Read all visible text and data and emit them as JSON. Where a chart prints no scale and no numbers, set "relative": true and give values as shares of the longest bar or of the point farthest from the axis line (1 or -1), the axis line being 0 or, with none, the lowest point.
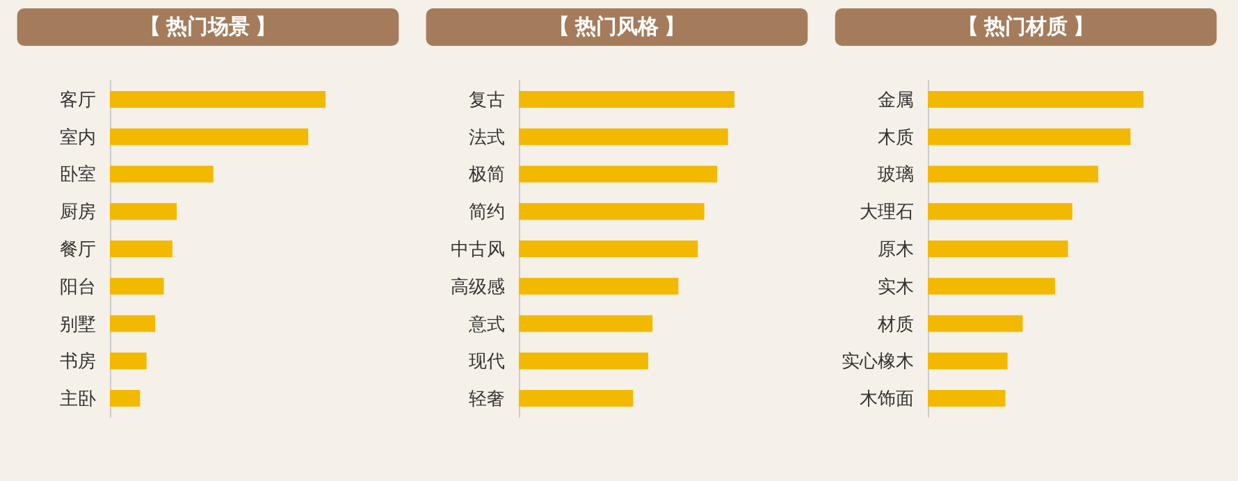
{
  "chart_data": [
    {
      "type": "bar",
      "title": "【 热门场景 】",
      "orientation": "horizontal",
      "relative": true,
      "categories": [
        "客厅",
        "室内",
        "卧室",
        "厨房",
        "餐厅",
        "阳台",
        "别墅",
        "书房",
        "主卧"
      ],
      "series": [
        {
          "color": "#f2b900",
          "values": [
            1,
            0.92,
            0.48,
            0.31,
            0.29,
            0.25,
            0.21,
            0.17,
            0.14
          ]
        }
      ]
    },
    {
      "type": "bar",
      "title": "【 热门风格 】",
      "orientation": "horizontal",
      "relative": true,
      "categories": [
        "复古",
        "法式",
        "极简",
        "简约",
        "中古风",
        "高级感",
        "意式",
        "现代",
        "轻奢"
      ],
      "series": [
        {
          "color": "#f2b900",
          "values": [
            1,
            0.97,
            0.92,
            0.86,
            0.83,
            0.74,
            0.62,
            0.6,
            0.53
          ]
        }
      ]
    },
    {
      "type": "bar",
      "title": "【 热门材质 】",
      "orientation": "horizontal",
      "relative": true,
      "categories": [
        "金属",
        "木质",
        "玻璃",
        "大理石",
        "原木",
        "实木",
        "材质",
        "实心橡木",
        "木饰面"
      ],
      "series": [
        {
          "color": "#f2b900",
          "values": [
            1,
            0.94,
            0.79,
            0.67,
            0.65,
            0.59,
            0.44,
            0.37,
            0.36
          ]
        }
      ]
    }
  ]
}
